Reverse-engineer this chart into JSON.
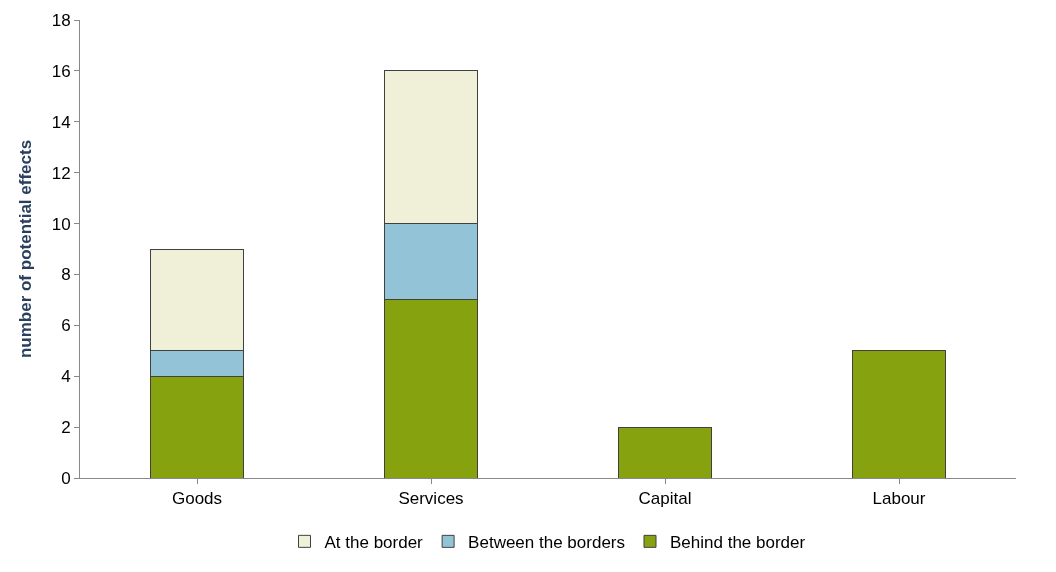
{
  "chart_data": {
    "type": "bar",
    "stacked": true,
    "ylabel": "number of potential effects",
    "categories": [
      "Goods",
      "Services",
      "Capital",
      "Labour"
    ],
    "series": [
      {
        "name": "Behind the border",
        "color": "#86a30f",
        "values": [
          4,
          7,
          2,
          5
        ]
      },
      {
        "name": "Between the borders",
        "color": "#93c3d6",
        "values": [
          1,
          3,
          null,
          null
        ]
      },
      {
        "name": "At the border",
        "color": "#f0f0d8",
        "values": [
          4,
          6,
          null,
          null
        ]
      }
    ],
    "ylim": [
      0,
      18
    ],
    "yticks": [
      0,
      2,
      4,
      6,
      8,
      10,
      12,
      14,
      16,
      18
    ],
    "grid": false,
    "legend": "bottom"
  }
}
